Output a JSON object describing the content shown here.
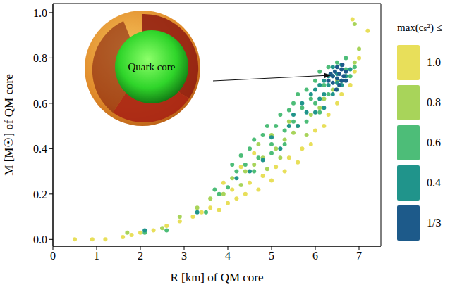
{
  "chart_data": {
    "type": "scatter",
    "x_label": "R [km] of QM core",
    "y_label": "M [M☉] of QM core",
    "legend_title": "max(cₛ²) ≤",
    "annotation": "Quark core",
    "legend": "right",
    "xlim": [
      0,
      7.5
    ],
    "ylim": [
      -0.03,
      1.04
    ],
    "xticks": [
      0,
      1,
      2,
      3,
      4,
      5,
      6,
      7
    ],
    "yticks": [
      {
        "value": 0,
        "label": "0.0"
      },
      0.2,
      0.4,
      0.6,
      0.8,
      {
        "value": 1,
        "label": "1.0"
      }
    ],
    "series": [
      {
        "name": "1.0",
        "color": "#e8df5a",
        "marker": "circle",
        "x": [
          0.5,
          0.9,
          1.2,
          1.6,
          1.8,
          2.0,
          2.3,
          2.6,
          2.9,
          3.2,
          3.4,
          3.6,
          3.8,
          4.0,
          4.2,
          4.1,
          4.4,
          4.5,
          4.7,
          4.8,
          5.0,
          5.1,
          5.3,
          5.4,
          5.6,
          5.7,
          5.9,
          6.0,
          6.2,
          6.3,
          6.5,
          6.6,
          6.8,
          6.9,
          7.0,
          6.85,
          7.2,
          4.3,
          4.6,
          3.9
        ],
        "values": [
          0.0,
          0.0,
          0.0,
          0.01,
          0.02,
          0.03,
          0.04,
          0.06,
          0.08,
          0.1,
          0.12,
          0.14,
          0.13,
          0.16,
          0.18,
          0.22,
          0.2,
          0.25,
          0.22,
          0.28,
          0.26,
          0.32,
          0.3,
          0.36,
          0.34,
          0.4,
          0.42,
          0.48,
          0.5,
          0.55,
          0.6,
          0.64,
          0.68,
          0.74,
          0.8,
          0.97,
          0.92,
          0.32,
          0.38,
          0.25
        ]
      },
      {
        "name": "0.8",
        "color": "#a8d45a",
        "marker": "circle",
        "x": [
          1.7,
          2.5,
          2.9,
          3.3,
          3.6,
          3.9,
          4.1,
          4.3,
          4.4,
          4.6,
          4.8,
          4.9,
          5.1,
          5.3,
          5.2,
          5.5,
          5.6,
          5.8,
          5.9,
          6.1,
          6.2,
          6.4,
          6.5,
          6.7,
          6.9,
          7.0,
          6.9,
          5.0,
          4.7,
          5.4
        ],
        "values": [
          0.03,
          0.05,
          0.1,
          0.14,
          0.18,
          0.2,
          0.27,
          0.24,
          0.3,
          0.33,
          0.36,
          0.31,
          0.4,
          0.44,
          0.36,
          0.47,
          0.5,
          0.46,
          0.55,
          0.58,
          0.62,
          0.66,
          0.7,
          0.72,
          0.78,
          0.84,
          0.95,
          0.46,
          0.42,
          0.52
        ]
      },
      {
        "name": "0.6",
        "color": "#4dbd78",
        "marker": "circle",
        "x": [
          2.1,
          2.6,
          3.5,
          3.8,
          4.0,
          4.2,
          4.3,
          4.5,
          4.4,
          4.6,
          4.7,
          4.8,
          4.9,
          5.0,
          5.1,
          5.2,
          5.3,
          5.4,
          5.5,
          5.5,
          5.6,
          5.7,
          5.8,
          5.9,
          6.0,
          6.0,
          6.1,
          6.2,
          6.3,
          6.3,
          6.4,
          6.5,
          6.5,
          6.6,
          6.7,
          6.8,
          5.0,
          4.6,
          5.3,
          5.8,
          6.1,
          6.7,
          6.9,
          4.1,
          3.7
        ],
        "values": [
          0.03,
          0.04,
          0.12,
          0.2,
          0.23,
          0.3,
          0.37,
          0.4,
          0.33,
          0.44,
          0.36,
          0.46,
          0.5,
          0.42,
          0.5,
          0.55,
          0.48,
          0.57,
          0.6,
          0.52,
          0.64,
          0.58,
          0.66,
          0.62,
          0.7,
          0.6,
          0.74,
          0.68,
          0.76,
          0.64,
          0.72,
          0.66,
          0.78,
          0.7,
          0.75,
          0.72,
          0.38,
          0.3,
          0.42,
          0.52,
          0.56,
          0.8,
          0.76,
          0.33,
          0.22
        ]
      },
      {
        "name": "0.4",
        "color": "#20948b",
        "marker": "circle",
        "x": [
          2.1,
          3.3,
          4.2,
          4.5,
          4.8,
          5.0,
          5.2,
          5.4,
          5.5,
          5.6,
          5.7,
          5.8,
          5.9,
          6.0,
          6.0,
          6.1,
          6.1,
          6.2,
          6.2,
          6.3,
          6.3,
          6.4,
          6.4,
          6.5,
          6.6,
          6.6,
          6.7,
          6.8,
          6.5,
          6.2
        ],
        "values": [
          0.04,
          0.12,
          0.27,
          0.3,
          0.35,
          0.45,
          0.4,
          0.5,
          0.55,
          0.5,
          0.6,
          0.56,
          0.64,
          0.66,
          0.56,
          0.68,
          0.62,
          0.7,
          0.58,
          0.72,
          0.68,
          0.76,
          0.64,
          0.73,
          0.77,
          0.68,
          0.72,
          0.75,
          0.69,
          0.64
        ]
      },
      {
        "name": "1/3",
        "color": "#1d5a8a",
        "marker": "circle",
        "x": [
          6.3,
          6.4,
          6.45,
          6.5,
          6.55,
          6.6,
          6.6,
          6.65,
          6.7,
          6.4,
          6.5,
          6.7,
          6.55,
          6.35,
          6.62,
          6.48
        ],
        "values": [
          0.7,
          0.72,
          0.74,
          0.71,
          0.73,
          0.75,
          0.7,
          0.72,
          0.74,
          0.69,
          0.76,
          0.7,
          0.68,
          0.73,
          0.77,
          0.66
        ]
      }
    ]
  }
}
